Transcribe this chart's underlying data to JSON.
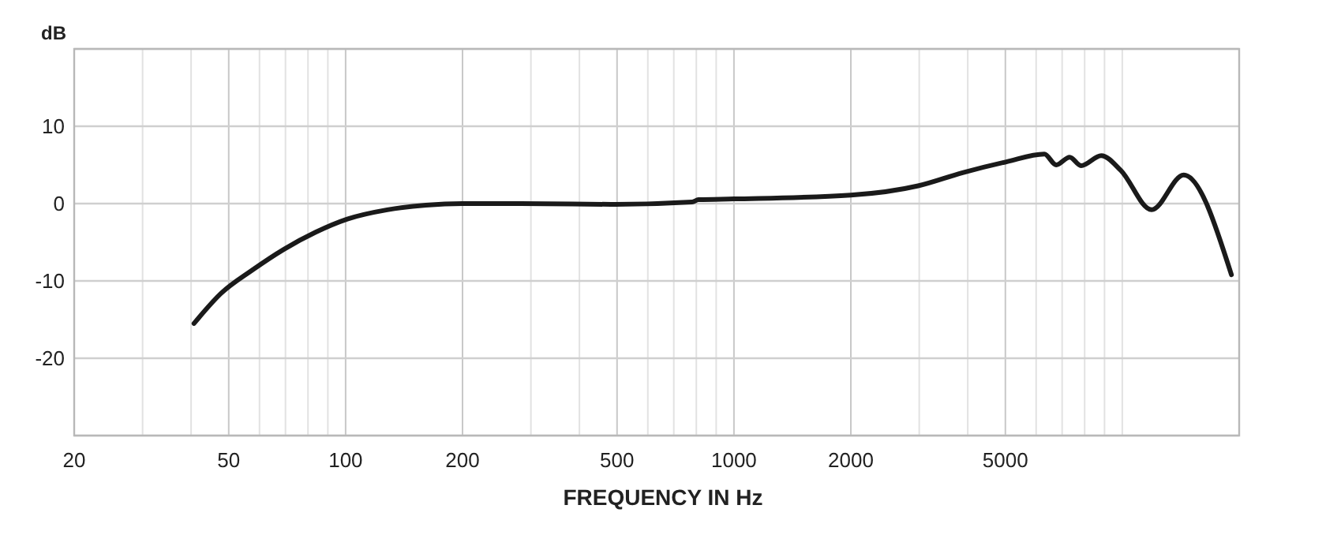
{
  "chart_data": {
    "type": "line",
    "xlabel": "FREQUENCY IN Hz",
    "ylabel": "dB",
    "log": "x",
    "grid": true,
    "marker": "none",
    "line_style": "solid",
    "xlim": [
      20,
      20000
    ],
    "ylim": [
      -30,
      20
    ],
    "xticks": [
      20,
      {
        "value": 30,
        "label": null
      },
      {
        "value": 40,
        "label": null
      },
      50,
      {
        "value": 60,
        "label": null
      },
      {
        "value": 70,
        "label": null
      },
      {
        "value": 80,
        "label": null
      },
      {
        "value": 90,
        "label": null
      },
      100,
      200,
      {
        "value": 300,
        "label": null
      },
      {
        "value": 400,
        "label": null
      },
      500,
      {
        "value": 600,
        "label": null
      },
      {
        "value": 700,
        "label": null
      },
      {
        "value": 800,
        "label": null
      },
      {
        "value": 900,
        "label": null
      },
      1000,
      2000,
      {
        "value": 3000,
        "label": null
      },
      {
        "value": 4000,
        "label": null
      },
      5000,
      {
        "value": 6000,
        "label": null
      },
      {
        "value": 7000,
        "label": null
      },
      {
        "value": 8000,
        "label": null
      },
      {
        "value": 9000,
        "label": null
      },
      {
        "value": 10000,
        "label": null
      },
      {
        "value": 20000,
        "label": null
      }
    ],
    "yticks": [
      {
        "value": -30,
        "label": null
      },
      -20,
      -10,
      0,
      10,
      {
        "value": 20,
        "label": null
      }
    ],
    "x": [
      40.7,
      47.8,
      57.5,
      69.4,
      83.7,
      101,
      128,
      161,
      200,
      282,
      495,
      780,
      810,
      1000,
      2000,
      2980,
      3880,
      5030,
      6300,
      6760,
      7320,
      7830,
      8830,
      9910,
      11900,
      14400,
      19100
    ],
    "series": [
      {
        "color": "#1a1a1a",
        "values": [
          -15.5,
          -11.6,
          -8.6,
          -5.9,
          -3.7,
          -2.0,
          -0.8,
          -0.2,
          0,
          0,
          -0.1,
          0.2,
          0.5,
          0.6,
          1.1,
          2.3,
          4.0,
          5.4,
          6.4,
          5.0,
          6.0,
          4.9,
          6.2,
          4.3,
          -0.8,
          3.7,
          -9.2
        ]
      }
    ]
  }
}
